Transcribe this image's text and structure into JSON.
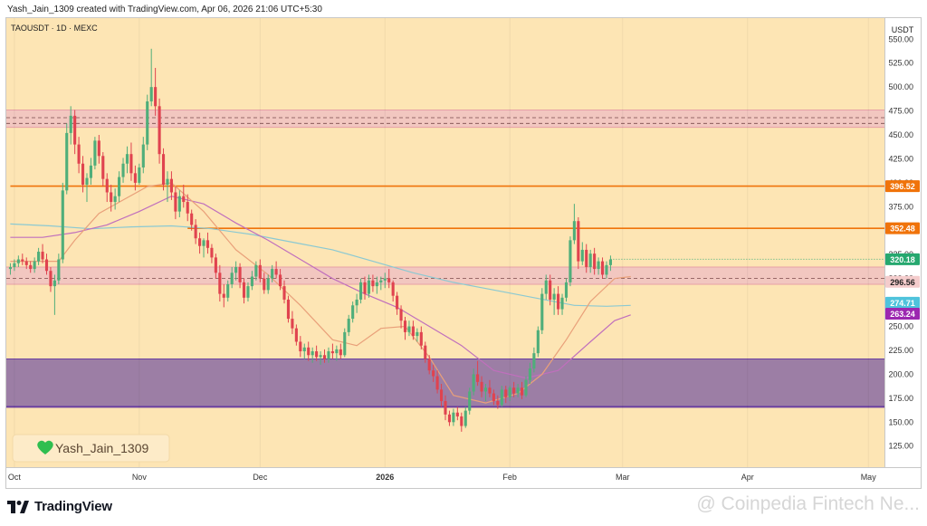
{
  "header": {
    "created_by": "Yash_Jain_1309 created with TradingView.com, Apr 06, 2026 21:06 UTC+5:30",
    "symbol": "TAOUSDT · 1D · MEXC"
  },
  "colors": {
    "background": "#fde5b4",
    "zone_red": "#f0c2c2",
    "zone_purple": "#9c7ea5",
    "bull": "#4fae7a",
    "bear": "#e0434f",
    "orange_line": "#f0730a",
    "ema_short": "#e9a07a",
    "ema_mid": "#c06fbd",
    "ema_long": "#8bc9d2"
  },
  "chart_data": {
    "type": "candlestick",
    "y_axis_label": "USDT",
    "ylim": [
      103,
      572
    ],
    "y_ticks": [
      125,
      150,
      175,
      200,
      225,
      250,
      275,
      300,
      325,
      350,
      375,
      400,
      425,
      450,
      475,
      500,
      525,
      550
    ],
    "x_tick_labels": [
      "Oct",
      "Nov",
      "Dec",
      "2026",
      "Feb",
      "Mar",
      "Apr",
      "May"
    ],
    "x_tick_dates": [
      "2025-10-01",
      "2025-11-01",
      "2025-12-01",
      "2026-01-01",
      "2026-02-01",
      "2026-03-01",
      "2026-04-01",
      "2026-05-01"
    ],
    "date_range": [
      "2025-09-29",
      "2026-05-05"
    ],
    "ohlc_start_date": "2025-09-30",
    "ohlc": [
      [
        310,
        316,
        304,
        312
      ],
      [
        312,
        320,
        308,
        316
      ],
      [
        316,
        324,
        312,
        320
      ],
      [
        320,
        326,
        314,
        318
      ],
      [
        318,
        322,
        310,
        314
      ],
      [
        314,
        318,
        306,
        310
      ],
      [
        310,
        322,
        306,
        318
      ],
      [
        318,
        332,
        314,
        328
      ],
      [
        328,
        336,
        316,
        320
      ],
      [
        320,
        326,
        304,
        308
      ],
      [
        308,
        312,
        286,
        292
      ],
      [
        292,
        304,
        262,
        298
      ],
      [
        298,
        326,
        294,
        320
      ],
      [
        320,
        400,
        316,
        392
      ],
      [
        392,
        462,
        388,
        452
      ],
      [
        452,
        480,
        440,
        470
      ],
      [
        470,
        476,
        430,
        440
      ],
      [
        440,
        448,
        410,
        420
      ],
      [
        420,
        428,
        390,
        398
      ],
      [
        398,
        410,
        380,
        405
      ],
      [
        405,
        426,
        398,
        418
      ],
      [
        418,
        448,
        414,
        444
      ],
      [
        444,
        450,
        420,
        428
      ],
      [
        428,
        432,
        396,
        404
      ],
      [
        404,
        410,
        380,
        390
      ],
      [
        390,
        398,
        370,
        380
      ],
      [
        380,
        394,
        372,
        386
      ],
      [
        386,
        412,
        380,
        406
      ],
      [
        406,
        426,
        400,
        420
      ],
      [
        420,
        438,
        410,
        430
      ],
      [
        430,
        442,
        402,
        410
      ],
      [
        410,
        418,
        392,
        400
      ],
      [
        400,
        420,
        398,
        416
      ],
      [
        416,
        448,
        410,
        440
      ],
      [
        440,
        492,
        434,
        485
      ],
      [
        485,
        540,
        480,
        500
      ],
      [
        500,
        520,
        470,
        480
      ],
      [
        480,
        488,
        420,
        430
      ],
      [
        430,
        436,
        392,
        398
      ],
      [
        398,
        412,
        380,
        404
      ],
      [
        404,
        412,
        382,
        390
      ],
      [
        390,
        396,
        362,
        370
      ],
      [
        370,
        392,
        364,
        386
      ],
      [
        386,
        398,
        374,
        380
      ],
      [
        380,
        388,
        360,
        368
      ],
      [
        368,
        372,
        350,
        356
      ],
      [
        356,
        362,
        336,
        342
      ],
      [
        342,
        348,
        326,
        334
      ],
      [
        334,
        342,
        322,
        340
      ],
      [
        340,
        348,
        326,
        332
      ],
      [
        332,
        336,
        316,
        322
      ],
      [
        322,
        326,
        300,
        306
      ],
      [
        306,
        314,
        276,
        284
      ],
      [
        284,
        294,
        270,
        280
      ],
      [
        280,
        298,
        276,
        294
      ],
      [
        294,
        312,
        290,
        306
      ],
      [
        306,
        318,
        298,
        312
      ],
      [
        312,
        316,
        290,
        296
      ],
      [
        296,
        300,
        274,
        280
      ],
      [
        280,
        296,
        276,
        292
      ],
      [
        292,
        308,
        288,
        302
      ],
      [
        302,
        318,
        298,
        314
      ],
      [
        314,
        320,
        296,
        300
      ],
      [
        300,
        306,
        284,
        288
      ],
      [
        288,
        304,
        284,
        300
      ],
      [
        300,
        314,
        296,
        310
      ],
      [
        310,
        318,
        300,
        304
      ],
      [
        304,
        310,
        288,
        292
      ],
      [
        292,
        298,
        274,
        278
      ],
      [
        278,
        282,
        254,
        258
      ],
      [
        258,
        266,
        242,
        248
      ],
      [
        248,
        252,
        230,
        234
      ],
      [
        234,
        240,
        218,
        224
      ],
      [
        224,
        232,
        216,
        228
      ],
      [
        228,
        234,
        214,
        220
      ],
      [
        220,
        228,
        212,
        224
      ],
      [
        224,
        230,
        214,
        218
      ],
      [
        218,
        224,
        210,
        220
      ],
      [
        220,
        226,
        212,
        216
      ],
      [
        216,
        228,
        212,
        224
      ],
      [
        224,
        232,
        216,
        222
      ],
      [
        222,
        230,
        214,
        226
      ],
      [
        226,
        232,
        216,
        220
      ],
      [
        220,
        248,
        218,
        244
      ],
      [
        244,
        262,
        240,
        258
      ],
      [
        258,
        276,
        254,
        272
      ],
      [
        272,
        284,
        264,
        278
      ],
      [
        278,
        300,
        274,
        296
      ],
      [
        296,
        302,
        278,
        284
      ],
      [
        284,
        304,
        280,
        298
      ],
      [
        298,
        304,
        286,
        292
      ],
      [
        292,
        302,
        284,
        296
      ],
      [
        296,
        302,
        288,
        298
      ],
      [
        298,
        306,
        290,
        300
      ],
      [
        300,
        310,
        290,
        296
      ],
      [
        296,
        298,
        276,
        282
      ],
      [
        282,
        286,
        262,
        268
      ],
      [
        268,
        272,
        248,
        256
      ],
      [
        256,
        260,
        236,
        244
      ],
      [
        244,
        256,
        240,
        250
      ],
      [
        250,
        256,
        236,
        240
      ],
      [
        240,
        248,
        234,
        244
      ],
      [
        244,
        250,
        226,
        230
      ],
      [
        230,
        234,
        212,
        216
      ],
      [
        216,
        220,
        200,
        204
      ],
      [
        204,
        210,
        192,
        198
      ],
      [
        198,
        204,
        180,
        184
      ],
      [
        184,
        190,
        166,
        172
      ],
      [
        172,
        178,
        152,
        158
      ],
      [
        158,
        162,
        146,
        150
      ],
      [
        150,
        164,
        146,
        160
      ],
      [
        160,
        166,
        152,
        156
      ],
      [
        156,
        160,
        140,
        146
      ],
      [
        146,
        166,
        144,
        162
      ],
      [
        162,
        186,
        158,
        182
      ],
      [
        182,
        206,
        178,
        200
      ],
      [
        200,
        214,
        188,
        192
      ],
      [
        192,
        198,
        176,
        182
      ],
      [
        182,
        190,
        172,
        186
      ],
      [
        186,
        194,
        176,
        180
      ],
      [
        180,
        184,
        168,
        172
      ],
      [
        172,
        178,
        164,
        168
      ],
      [
        168,
        188,
        166,
        184
      ],
      [
        184,
        188,
        170,
        176
      ],
      [
        176,
        188,
        172,
        186
      ],
      [
        186,
        192,
        176,
        180
      ],
      [
        180,
        190,
        176,
        186
      ],
      [
        186,
        192,
        174,
        178
      ],
      [
        178,
        198,
        176,
        194
      ],
      [
        194,
        212,
        190,
        206
      ],
      [
        206,
        228,
        202,
        222
      ],
      [
        222,
        250,
        218,
        246
      ],
      [
        246,
        290,
        242,
        284
      ],
      [
        284,
        304,
        278,
        298
      ],
      [
        298,
        304,
        272,
        278
      ],
      [
        278,
        290,
        262,
        284
      ],
      [
        284,
        292,
        262,
        268
      ],
      [
        268,
        284,
        262,
        280
      ],
      [
        280,
        300,
        276,
        296
      ],
      [
        296,
        344,
        292,
        340
      ],
      [
        340,
        378,
        336,
        360
      ],
      [
        360,
        364,
        310,
        318
      ],
      [
        318,
        338,
        314,
        330
      ],
      [
        330,
        336,
        306,
        312
      ],
      [
        312,
        330,
        306,
        326
      ],
      [
        326,
        332,
        304,
        310
      ],
      [
        310,
        322,
        304,
        318
      ],
      [
        318,
        322,
        300,
        304
      ],
      [
        304,
        318,
        300,
        314
      ],
      [
        314,
        324,
        308,
        320
      ]
    ],
    "ema_short": [
      [
        0,
        318
      ],
      [
        12,
        318
      ],
      [
        16,
        340
      ],
      [
        22,
        368
      ],
      [
        28,
        382
      ],
      [
        34,
        396
      ],
      [
        40,
        400
      ],
      [
        48,
        370
      ],
      [
        56,
        330
      ],
      [
        64,
        304
      ],
      [
        72,
        272
      ],
      [
        80,
        236
      ],
      [
        86,
        230
      ],
      [
        92,
        248
      ],
      [
        98,
        250
      ],
      [
        104,
        218
      ],
      [
        110,
        178
      ],
      [
        118,
        170
      ],
      [
        126,
        180
      ],
      [
        132,
        200
      ],
      [
        138,
        236
      ],
      [
        144,
        276
      ],
      [
        150,
        300
      ],
      [
        154,
        302
      ]
    ],
    "ema_mid": [
      [
        0,
        343
      ],
      [
        8,
        343
      ],
      [
        16,
        348
      ],
      [
        24,
        356
      ],
      [
        32,
        370
      ],
      [
        40,
        386
      ],
      [
        48,
        378
      ],
      [
        56,
        358
      ],
      [
        64,
        340
      ],
      [
        72,
        320
      ],
      [
        80,
        300
      ],
      [
        88,
        284
      ],
      [
        96,
        270
      ],
      [
        104,
        250
      ],
      [
        112,
        230
      ],
      [
        120,
        204
      ],
      [
        128,
        196
      ],
      [
        136,
        204
      ],
      [
        144,
        234
      ],
      [
        150,
        256
      ],
      [
        154,
        262
      ]
    ],
    "ema_long": [
      [
        0,
        357
      ],
      [
        10,
        355
      ],
      [
        20,
        352
      ],
      [
        30,
        354
      ],
      [
        40,
        355
      ],
      [
        50,
        352
      ],
      [
        60,
        346
      ],
      [
        70,
        338
      ],
      [
        80,
        330
      ],
      [
        90,
        318
      ],
      [
        100,
        306
      ],
      [
        110,
        296
      ],
      [
        120,
        288
      ],
      [
        130,
        280
      ],
      [
        140,
        272
      ],
      [
        148,
        271
      ],
      [
        154,
        272
      ]
    ],
    "zones": [
      {
        "from": 458,
        "to": 476,
        "color": "zone_red",
        "dashed_at": [
          462,
          468
        ]
      },
      {
        "from": 294,
        "to": 312,
        "color": "zone_red",
        "dashed_at": [
          300
        ]
      },
      {
        "from": 166,
        "to": 216,
        "color": "zone_purple"
      }
    ],
    "level_lines": [
      {
        "value": 396.52,
        "start_index": 0,
        "color": "orange_line"
      },
      {
        "value": 352.48,
        "start_index": 44,
        "color": "orange_line"
      }
    ],
    "current_price_value": 320.18,
    "price_badges": [
      {
        "text": "396.52",
        "value": 396.52,
        "bg": "#f0730a",
        "fg": "#ffffff"
      },
      {
        "text": "352.48",
        "value": 352.48,
        "bg": "#f0730a",
        "fg": "#ffffff"
      },
      {
        "text": "320.18",
        "value": 320.18,
        "bg": "#26a86f",
        "fg": "#ffffff"
      },
      {
        "text": "296.56",
        "value": 296.56,
        "bg": "#f4cccc",
        "fg": "#222222"
      },
      {
        "text": "274.71",
        "value": 274.71,
        "bg": "#4fc3dc",
        "fg": "#ffffff"
      },
      {
        "text": "263.24",
        "value": 263.24,
        "bg": "#9c27b0",
        "fg": "#ffffff"
      }
    ]
  },
  "signature": {
    "text": "Yash_Jain_1309",
    "icon": "green-heart-icon"
  },
  "footer": {
    "brand": "TradingView",
    "watermark": "@ Coinpedia Fintech Ne..."
  }
}
